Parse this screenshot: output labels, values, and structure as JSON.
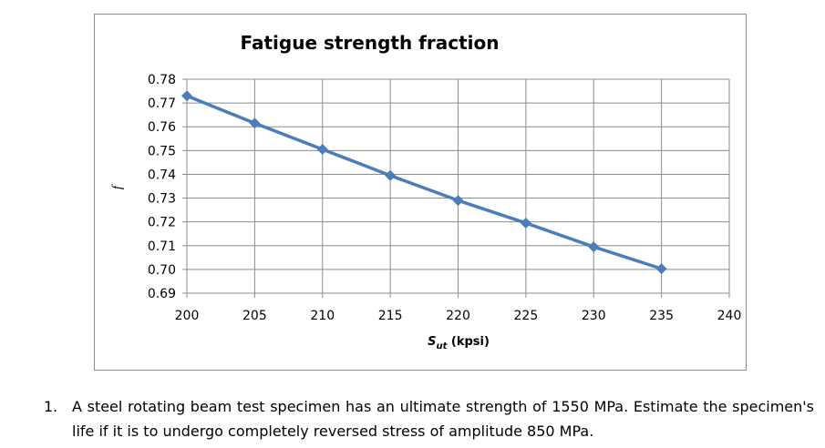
{
  "chart_data": {
    "type": "line",
    "title": "Fatigue strength fraction",
    "xlabel": {
      "main": "S",
      "sub": "ut",
      "unit": " (kpsi)"
    },
    "ylabel": "f",
    "x": [
      200,
      205,
      210,
      215,
      220,
      225,
      230,
      235
    ],
    "series": [
      {
        "values": [
          0.773,
          0.7615,
          0.7505,
          0.7395,
          0.729,
          0.7195,
          0.7095,
          0.7003
        ]
      }
    ],
    "xlim": [
      200,
      240
    ],
    "ylim": [
      0.69,
      0.78
    ],
    "xticks": [
      "200",
      "205",
      "210",
      "215",
      "220",
      "225",
      "230",
      "235",
      "240"
    ],
    "yticks": [
      "0.69",
      "0.70",
      "0.71",
      "0.72",
      "0.73",
      "0.74",
      "0.75",
      "0.76",
      "0.77",
      "0.78"
    ],
    "grid": true,
    "legend": "none",
    "colors": {
      "line": "#4a7ebb",
      "marker": "#4a7ebb",
      "grid": "#8c8c8c",
      "axis": "#8c8c8c"
    }
  },
  "question": {
    "number": "1.",
    "text": "A steel rotating beam test specimen has an ultimate strength of 1550 MPa. Estimate the specimen's life if it is to undergo completely reversed stress of amplitude 850 MPa."
  }
}
